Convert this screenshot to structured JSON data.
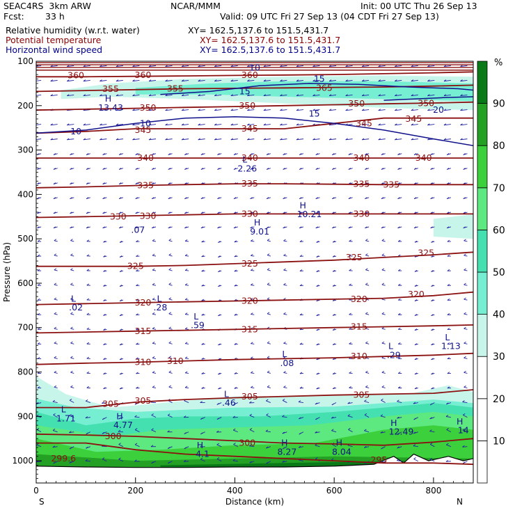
{
  "header": {
    "model": "SEAC4RS  3km ARW",
    "org": "NCAR/MMM",
    "init": "Init: 00 UTC Thu 26 Sep 13",
    "fcst_label": "Fcst:",
    "fcst_value": "33 h",
    "valid": "Valid: 09 UTC Fri 27 Sep 13 (04 CDT Fri 27 Sep 13)",
    "fields": [
      {
        "name": "Relative humidity (w.r.t. water)",
        "xy": "XY= 162.5,137.6 to 151.5,431.7",
        "color": "#000000"
      },
      {
        "name": "Potential temperature",
        "xy": "XY= 162.5,137.6 to 151.5,431.7",
        "color": "#8b0000"
      },
      {
        "name": "Horizontal wind speed",
        "xy": "XY= 162.5,137.6 to 151.5,431.7",
        "color": "#00008b"
      }
    ]
  },
  "chart_data": {
    "type": "contour",
    "xlabel": "Distance (km)",
    "ylabel": "Pressure (hPa)",
    "xlim": [
      0,
      880
    ],
    "ylim": [
      1050,
      100
    ],
    "x_ticks": [
      "0",
      "200",
      "400",
      "600",
      "800"
    ],
    "y_ticks": [
      "100",
      "200",
      "300",
      "400",
      "500",
      "600",
      "700",
      "800",
      "900",
      "1000"
    ],
    "x_end_labels": {
      "left": "S",
      "right": "N"
    },
    "colorbar": {
      "unit": "%",
      "labels": [
        "10",
        "20",
        "30",
        "40",
        "50",
        "60",
        "70",
        "80",
        "90"
      ],
      "levels": [
        0,
        10,
        20,
        30,
        40,
        50,
        60,
        70,
        80,
        90,
        100
      ],
      "colors": [
        "#ffffff",
        "#ffffff",
        "#ffffff",
        "#c8f5ea",
        "#76eed2",
        "#44e0b0",
        "#5ee880",
        "#3cd03c",
        "#24a024",
        "#0a7a18"
      ]
    },
    "theta_contours": [
      {
        "value": 299,
        "p": [
          960,
          960,
          975,
          985,
          990,
          995,
          1000,
          1005,
          1005,
          1008
        ]
      },
      {
        "value": 300,
        "p": [
          940,
          942,
          945,
          950,
          955,
          960,
          962,
          965,
          958,
          950
        ]
      },
      {
        "value": 305,
        "p": [
          880,
          880,
          868,
          862,
          858,
          855,
          852,
          850,
          848,
          840
        ]
      },
      {
        "value": 310,
        "p": [
          783,
          780,
          778,
          775,
          772,
          770,
          768,
          765,
          762,
          758
        ]
      },
      {
        "value": 315,
        "p": [
          712,
          710,
          708,
          706,
          704,
          702,
          700,
          698,
          696,
          694
        ]
      },
      {
        "value": 320,
        "p": [
          648,
          646,
          644,
          642,
          640,
          638,
          636,
          634,
          628,
          620
        ]
      },
      {
        "value": 325,
        "p": [
          562,
          562,
          562,
          560,
          556,
          552,
          548,
          542,
          536,
          530
        ]
      },
      {
        "value": 330,
        "p": [
          452,
          450,
          448,
          446,
          444,
          444,
          444,
          444,
          444,
          444
        ]
      },
      {
        "value": 335,
        "p": [
          385,
          383,
          380,
          378,
          376,
          376,
          377,
          378,
          378,
          378
        ]
      },
      {
        "value": 340,
        "p": [
          318,
          318,
          318,
          318,
          318,
          318,
          318,
          318,
          318,
          318
        ]
      },
      {
        "value": 345,
        "p": [
          262,
          258,
          252,
          252,
          252,
          252,
          240,
          228,
          228,
          228
        ]
      },
      {
        "value": 350,
        "p": [
          210,
          208,
          206,
          204,
          202,
          200,
          198,
          196,
          194,
          192
        ]
      },
      {
        "value": 355,
        "p": [
          168,
          166,
          164,
          162,
          161,
          160,
          159,
          158,
          156,
          154
        ]
      },
      {
        "value": 360,
        "p": [
          135,
          135,
          134,
          133,
          132,
          131,
          130,
          128,
          126,
          124
        ]
      }
    ],
    "theta_x": [
      0,
      100,
      200,
      300,
      400,
      500,
      600,
      700,
      800,
      880
    ],
    "wind_contours": [
      {
        "value": 10,
        "x": [
          0,
          100,
          200,
          300,
          400,
          500,
          600,
          700,
          800,
          880
        ],
        "p": [
          262,
          255,
          240,
          228,
          225,
          228,
          240,
          255,
          275,
          290
        ]
      },
      {
        "value": 15,
        "x": [
          250,
          350,
          450,
          550,
          650,
          750,
          850,
          880
        ],
        "p": [
          175,
          168,
          155,
          150,
          152,
          158,
          162,
          165
        ]
      },
      {
        "value": 20,
        "x": [
          700,
          760,
          820,
          880
        ],
        "p": [
          188,
          185,
          182,
          180
        ]
      }
    ],
    "labels": [
      {
        "text": "360",
        "type": "theta",
        "x": 80,
        "p": 132
      },
      {
        "text": "360",
        "type": "theta",
        "x": 215,
        "p": 131
      },
      {
        "text": "360",
        "type": "theta",
        "x": 430,
        "p": 131
      },
      {
        "text": "355",
        "type": "theta",
        "x": 150,
        "p": 163
      },
      {
        "text": "355",
        "type": "theta",
        "x": 280,
        "p": 162
      },
      {
        "text": "365",
        "type": "theta",
        "x": 580,
        "p": 160
      },
      {
        "text": "350",
        "type": "theta",
        "x": 225,
        "p": 205
      },
      {
        "text": "350",
        "type": "theta",
        "x": 425,
        "p": 200
      },
      {
        "text": "350",
        "type": "theta",
        "x": 645,
        "p": 196
      },
      {
        "text": "350",
        "type": "theta",
        "x": 785,
        "p": 195
      },
      {
        "text": "345",
        "type": "theta",
        "x": 215,
        "p": 255
      },
      {
        "text": "345",
        "type": "theta",
        "x": 430,
        "p": 252
      },
      {
        "text": "345",
        "type": "theta",
        "x": 660,
        "p": 240
      },
      {
        "text": "345",
        "type": "theta",
        "x": 760,
        "p": 230
      },
      {
        "text": "340",
        "type": "theta",
        "x": 220,
        "p": 318
      },
      {
        "text": "340",
        "type": "theta",
        "x": 430,
        "p": 318
      },
      {
        "text": "340",
        "type": "theta",
        "x": 655,
        "p": 318
      },
      {
        "text": "340",
        "type": "theta",
        "x": 780,
        "p": 318
      },
      {
        "text": "335",
        "type": "theta",
        "x": 220,
        "p": 380
      },
      {
        "text": "335",
        "type": "theta",
        "x": 430,
        "p": 376
      },
      {
        "text": "335",
        "type": "theta",
        "x": 655,
        "p": 377
      },
      {
        "text": "335",
        "type": "theta",
        "x": 715,
        "p": 378
      },
      {
        "text": "330",
        "type": "theta",
        "x": 165,
        "p": 450
      },
      {
        "text": "330",
        "type": "theta",
        "x": 225,
        "p": 449
      },
      {
        "text": "330",
        "type": "theta",
        "x": 430,
        "p": 444
      },
      {
        "text": "330",
        "type": "theta",
        "x": 655,
        "p": 444
      },
      {
        "text": "325",
        "type": "theta",
        "x": 200,
        "p": 562
      },
      {
        "text": "325",
        "type": "theta",
        "x": 430,
        "p": 556
      },
      {
        "text": "325",
        "type": "theta",
        "x": 640,
        "p": 542
      },
      {
        "text": "325",
        "type": "theta",
        "x": 785,
        "p": 532
      },
      {
        "text": "320",
        "type": "theta",
        "x": 215,
        "p": 644
      },
      {
        "text": "320",
        "type": "theta",
        "x": 430,
        "p": 640
      },
      {
        "text": "320",
        "type": "theta",
        "x": 650,
        "p": 636
      },
      {
        "text": "320",
        "type": "theta",
        "x": 765,
        "p": 625
      },
      {
        "text": "315",
        "type": "theta",
        "x": 215,
        "p": 708
      },
      {
        "text": "315",
        "type": "theta",
        "x": 430,
        "p": 704
      },
      {
        "text": "315",
        "type": "theta",
        "x": 650,
        "p": 698
      },
      {
        "text": "310",
        "type": "theta",
        "x": 215,
        "p": 778
      },
      {
        "text": "310",
        "type": "theta",
        "x": 280,
        "p": 776
      },
      {
        "text": "310",
        "type": "theta",
        "x": 650,
        "p": 765
      },
      {
        "text": "305",
        "type": "theta",
        "x": 150,
        "p": 872
      },
      {
        "text": "305",
        "type": "theta",
        "x": 215,
        "p": 865
      },
      {
        "text": "305",
        "type": "theta",
        "x": 430,
        "p": 856
      },
      {
        "text": "305",
        "type": "theta",
        "x": 655,
        "p": 852
      },
      {
        "text": "300",
        "type": "theta",
        "x": 155,
        "p": 945
      },
      {
        "text": "300",
        "type": "theta",
        "x": 425,
        "p": 960
      },
      {
        "text": "295",
        "type": "theta",
        "x": 690,
        "p": 998
      },
      {
        "text": "299.6",
        "type": "theta",
        "x": 55,
        "p": 995
      },
      {
        "text": "10",
        "type": "wind",
        "x": 80,
        "p": 258
      },
      {
        "text": "10",
        "type": "wind",
        "x": 220,
        "p": 240
      },
      {
        "text": "10",
        "type": "wind",
        "x": 440,
        "p": 115
      },
      {
        "text": "15",
        "type": "wind",
        "x": 420,
        "p": 168
      },
      {
        "text": "15",
        "type": "wind",
        "x": 570,
        "p": 140
      },
      {
        "text": "15",
        "type": "wind",
        "x": 560,
        "p": 218
      },
      {
        "text": "20",
        "type": "wind",
        "x": 810,
        "p": 210
      },
      {
        "text": "H",
        "type": "wind",
        "x": 145,
        "p": 185
      },
      {
        "text": "13.43",
        "type": "wind",
        "x": 150,
        "p": 205
      },
      {
        "text": "L",
        "type": "wind",
        "x": 420,
        "p": 322
      },
      {
        "text": "2.26",
        "type": "wind",
        "x": 425,
        "p": 342
      },
      {
        "text": "H",
        "type": "wind",
        "x": 537,
        "p": 425
      },
      {
        "text": "10.21",
        "type": "wind",
        "x": 550,
        "p": 445
      },
      {
        "text": "H",
        "type": "wind",
        "x": 445,
        "p": 464
      },
      {
        "text": "9.01",
        "type": "wind",
        "x": 450,
        "p": 484
      },
      {
        "text": ".07",
        "type": "wind",
        "x": 205,
        "p": 480
      },
      {
        "text": "L",
        "type": "wind",
        "x": 75,
        "p": 635
      },
      {
        "text": ".02",
        "type": "wind",
        "x": 80,
        "p": 655
      },
      {
        "text": "L",
        "type": "wind",
        "x": 248,
        "p": 635
      },
      {
        "text": ".28",
        "type": "wind",
        "x": 250,
        "p": 655
      },
      {
        "text": "L",
        "type": "wind",
        "x": 322,
        "p": 675
      },
      {
        "text": ".59",
        "type": "wind",
        "x": 325,
        "p": 695
      },
      {
        "text": "L",
        "type": "wind",
        "x": 500,
        "p": 760
      },
      {
        "text": ".08",
        "type": "wind",
        "x": 505,
        "p": 780
      },
      {
        "text": "L",
        "type": "wind",
        "x": 714,
        "p": 742
      },
      {
        "text": ".29",
        "type": "wind",
        "x": 720,
        "p": 762
      },
      {
        "text": "L",
        "type": "wind",
        "x": 828,
        "p": 722
      },
      {
        "text": "1.13",
        "type": "wind",
        "x": 835,
        "p": 742
      },
      {
        "text": "L",
        "type": "wind",
        "x": 383,
        "p": 850
      },
      {
        "text": ".46",
        "type": "wind",
        "x": 388,
        "p": 870
      },
      {
        "text": "L",
        "type": "wind",
        "x": 55,
        "p": 885
      },
      {
        "text": "1.71",
        "type": "wind",
        "x": 60,
        "p": 905
      },
      {
        "text": "H",
        "type": "wind",
        "x": 168,
        "p": 900
      },
      {
        "text": "4.77",
        "type": "wind",
        "x": 175,
        "p": 920
      },
      {
        "text": "H",
        "type": "wind",
        "x": 330,
        "p": 965
      },
      {
        "text": "4.1",
        "type": "wind",
        "x": 335,
        "p": 985
      },
      {
        "text": "H",
        "type": "wind",
        "x": 500,
        "p": 960
      },
      {
        "text": "8.27",
        "type": "wind",
        "x": 505,
        "p": 980
      },
      {
        "text": "H",
        "type": "wind",
        "x": 610,
        "p": 960
      },
      {
        "text": "8.04",
        "type": "wind",
        "x": 615,
        "p": 980
      },
      {
        "text": "H",
        "type": "wind",
        "x": 720,
        "p": 915
      },
      {
        "text": "12.49",
        "type": "wind",
        "x": 735,
        "p": 935
      },
      {
        "text": "H",
        "type": "wind",
        "x": 853,
        "p": 912
      },
      {
        "text": "14",
        "type": "wind",
        "x": 860,
        "p": 932
      }
    ]
  }
}
